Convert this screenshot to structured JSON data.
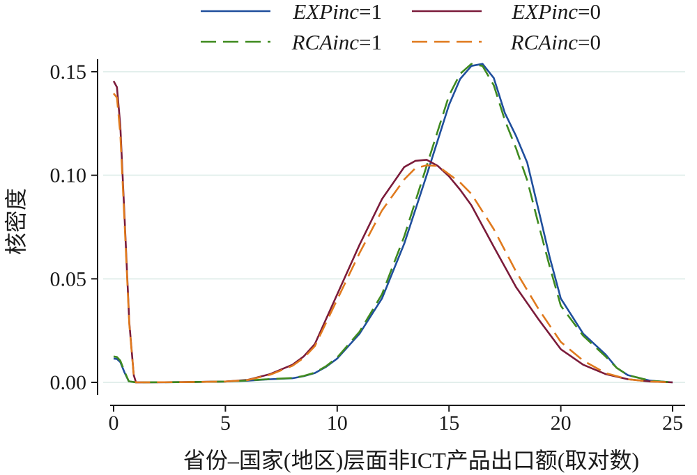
{
  "chart_data": {
    "type": "line",
    "title": "",
    "xlabel": "省份–国家(地区)层面非ICT产品出口额(取对数)",
    "ylabel": "核密度",
    "xlim": [
      0,
      25
    ],
    "ylim": [
      0,
      0.15
    ],
    "x_ticks": [
      "0",
      "5",
      "10",
      "15",
      "20",
      "25"
    ],
    "y_ticks": [
      "0.00",
      "0.05",
      "0.10",
      "0.15"
    ],
    "grid": true,
    "legend_position": "top",
    "series": [
      {
        "name": "EXPinc=1",
        "legend_prefix": "EXPinc",
        "legend_suffix": "=1",
        "color": "#1f4e9c",
        "dash": "solid",
        "points": [
          [
            0,
            0.0115
          ],
          [
            0.15,
            0.0113
          ],
          [
            0.3,
            0.0098
          ],
          [
            0.5,
            0.0045
          ],
          [
            0.68,
            0.0005
          ],
          [
            1,
            0
          ],
          [
            3,
            0.0001
          ],
          [
            5,
            0.0004
          ],
          [
            6,
            0.0008
          ],
          [
            7,
            0.0015
          ],
          [
            8,
            0.002
          ],
          [
            8.5,
            0.003
          ],
          [
            9,
            0.0045
          ],
          [
            9.5,
            0.0075
          ],
          [
            10,
            0.0115
          ],
          [
            11,
            0.0235
          ],
          [
            12,
            0.0405
          ],
          [
            13,
            0.067
          ],
          [
            14,
            0.1
          ],
          [
            15,
            0.134
          ],
          [
            15.5,
            0.1465
          ],
          [
            16,
            0.1528
          ],
          [
            16.5,
            0.1538
          ],
          [
            17,
            0.147
          ],
          [
            17.5,
            0.13
          ],
          [
            18,
            0.119
          ],
          [
            18.5,
            0.106
          ],
          [
            19,
            0.0835
          ],
          [
            19.5,
            0.0605
          ],
          [
            20,
            0.0405
          ],
          [
            21,
            0.0235
          ],
          [
            22,
            0.0135
          ],
          [
            22.5,
            0.007
          ],
          [
            23,
            0.0035
          ],
          [
            24,
            0.0008
          ],
          [
            25,
            0
          ]
        ]
      },
      {
        "name": "EXPinc=0",
        "legend_prefix": "EXPinc",
        "legend_suffix": "=0",
        "color": "#7b1b3a",
        "dash": "solid",
        "points": [
          [
            0,
            0.1455
          ],
          [
            0.15,
            0.1425
          ],
          [
            0.3,
            0.124
          ],
          [
            0.5,
            0.0775
          ],
          [
            0.7,
            0.029
          ],
          [
            0.9,
            0.0035
          ],
          [
            1,
            0
          ],
          [
            3,
            0.0001
          ],
          [
            5,
            0.0004
          ],
          [
            6,
            0.0012
          ],
          [
            7,
            0.004
          ],
          [
            8,
            0.0085
          ],
          [
            8.5,
            0.0125
          ],
          [
            9,
            0.0185
          ],
          [
            10,
            0.0425
          ],
          [
            11,
            0.0665
          ],
          [
            12,
            0.0885
          ],
          [
            13,
            0.104
          ],
          [
            13.5,
            0.107
          ],
          [
            14,
            0.1075
          ],
          [
            14.5,
            0.1045
          ],
          [
            15,
            0.0995
          ],
          [
            15.5,
            0.093
          ],
          [
            16,
            0.0855
          ],
          [
            17,
            0.0655
          ],
          [
            18,
            0.046
          ],
          [
            19,
            0.0305
          ],
          [
            20,
            0.016
          ],
          [
            21,
            0.0085
          ],
          [
            22,
            0.004
          ],
          [
            23,
            0.0015
          ],
          [
            24,
            0.0004
          ],
          [
            25,
            0
          ]
        ]
      },
      {
        "name": "RCAinc=1",
        "legend_prefix": "RCAinc",
        "legend_suffix": "=1",
        "color": "#3f8a1f",
        "dash": "long",
        "points": [
          [
            0,
            0.0125
          ],
          [
            0.15,
            0.0122
          ],
          [
            0.3,
            0.0105
          ],
          [
            0.5,
            0.005
          ],
          [
            0.68,
            0.0005
          ],
          [
            1,
            0
          ],
          [
            3,
            0.0001
          ],
          [
            5,
            0.0004
          ],
          [
            6,
            0.0009
          ],
          [
            7,
            0.0016
          ],
          [
            8,
            0.0021
          ],
          [
            8.5,
            0.0031
          ],
          [
            9,
            0.0047
          ],
          [
            9.5,
            0.0078
          ],
          [
            10,
            0.012
          ],
          [
            11,
            0.0245
          ],
          [
            12,
            0.0425
          ],
          [
            13,
            0.0705
          ],
          [
            14,
            0.1045
          ],
          [
            15,
            0.1385
          ],
          [
            15.5,
            0.149
          ],
          [
            16,
            0.1538
          ],
          [
            16.5,
            0.1528
          ],
          [
            17,
            0.1435
          ],
          [
            17.5,
            0.1265
          ],
          [
            18,
            0.113
          ],
          [
            18.5,
            0.0975
          ],
          [
            19,
            0.0765
          ],
          [
            19.5,
            0.056
          ],
          [
            20,
            0.037
          ],
          [
            21,
            0.0225
          ],
          [
            22,
            0.0125
          ],
          [
            22.5,
            0.007
          ],
          [
            23,
            0.0035
          ],
          [
            24,
            0.0008
          ],
          [
            25,
            0
          ]
        ]
      },
      {
        "name": "RCAinc=0",
        "legend_prefix": "RCAinc",
        "legend_suffix": "=0",
        "color": "#e07a1e",
        "dash": "long",
        "points": [
          [
            0,
            0.1395
          ],
          [
            0.15,
            0.1375
          ],
          [
            0.3,
            0.12
          ],
          [
            0.5,
            0.075
          ],
          [
            0.7,
            0.028
          ],
          [
            0.9,
            0.0035
          ],
          [
            1,
            0
          ],
          [
            3,
            0.0001
          ],
          [
            5,
            0.0004
          ],
          [
            6,
            0.0011
          ],
          [
            7,
            0.0037
          ],
          [
            8,
            0.008
          ],
          [
            8.5,
            0.0118
          ],
          [
            9,
            0.0175
          ],
          [
            10,
            0.04
          ],
          [
            11,
            0.0625
          ],
          [
            12,
            0.083
          ],
          [
            13,
            0.098
          ],
          [
            13.5,
            0.1035
          ],
          [
            14,
            0.1048
          ],
          [
            14.5,
            0.1045
          ],
          [
            15,
            0.1005
          ],
          [
            15.5,
            0.0965
          ],
          [
            16,
            0.091
          ],
          [
            17,
            0.074
          ],
          [
            18,
            0.0535
          ],
          [
            19,
            0.0355
          ],
          [
            20,
            0.0195
          ],
          [
            21,
            0.0105
          ],
          [
            22,
            0.0045
          ],
          [
            23,
            0.0015
          ],
          [
            24,
            0.0004
          ],
          [
            25,
            0
          ]
        ]
      }
    ]
  }
}
